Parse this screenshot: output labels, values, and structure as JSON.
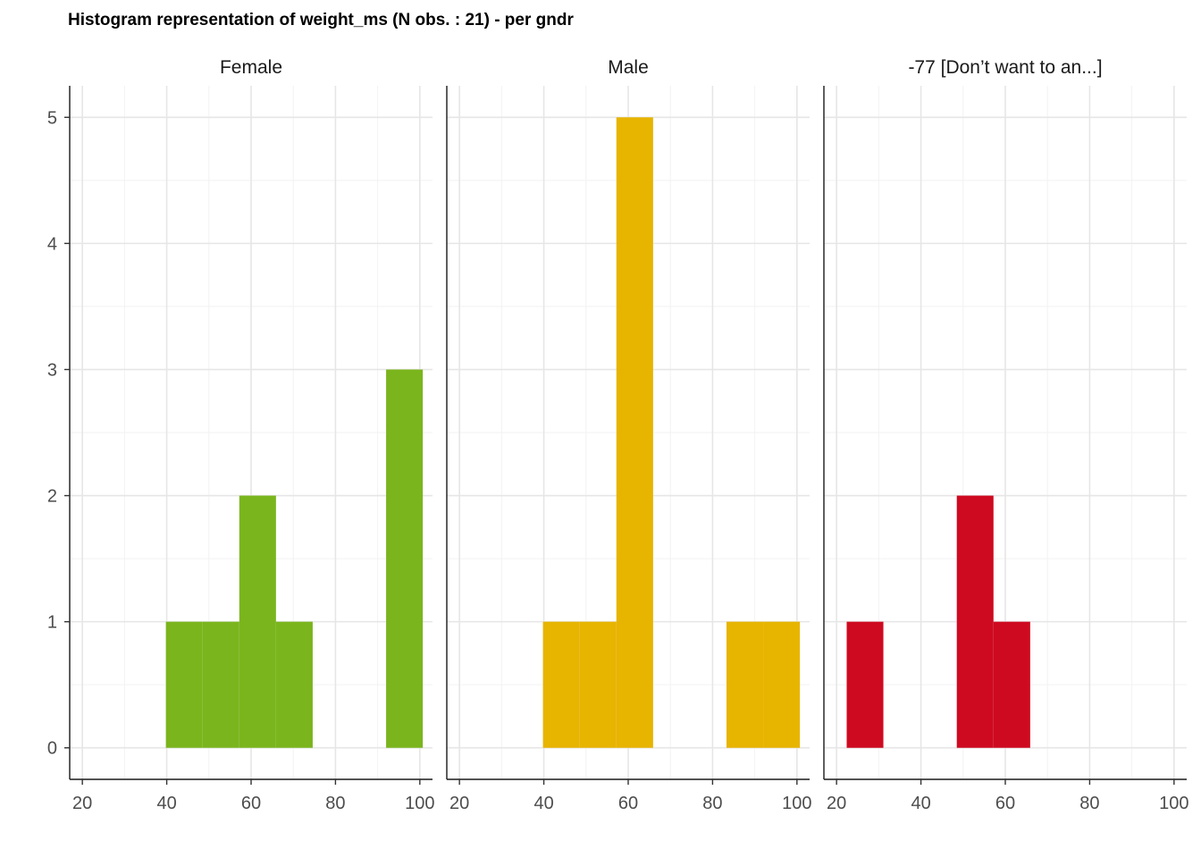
{
  "chart_data": {
    "type": "bar",
    "title": "Histogram representation of weight_ms (N obs. : 21) - per gndr",
    "xlabel": "",
    "ylabel": "",
    "xlim": [
      17,
      103
    ],
    "ylim": [
      -0.25,
      5.25
    ],
    "x_ticks": [
      20,
      40,
      60,
      80,
      100
    ],
    "y_ticks": [
      0,
      1,
      2,
      3,
      4,
      5
    ],
    "grid": true,
    "bin_width": 8.7,
    "facets": [
      {
        "label": "Female",
        "color": "#7AB51D",
        "bins": [
          {
            "x0": 39.8,
            "x1": 48.5,
            "count": 1
          },
          {
            "x0": 48.5,
            "x1": 57.2,
            "count": 1
          },
          {
            "x0": 57.2,
            "x1": 65.9,
            "count": 2
          },
          {
            "x0": 65.9,
            "x1": 74.6,
            "count": 1
          },
          {
            "x0": 92.0,
            "x1": 100.7,
            "count": 3
          }
        ]
      },
      {
        "label": "Male",
        "color": "#E7B400",
        "bins": [
          {
            "x0": 39.8,
            "x1": 48.5,
            "count": 1
          },
          {
            "x0": 48.5,
            "x1": 57.2,
            "count": 1
          },
          {
            "x0": 57.2,
            "x1": 65.9,
            "count": 5
          },
          {
            "x0": 83.3,
            "x1": 92.0,
            "count": 1
          },
          {
            "x0": 92.0,
            "x1": 100.7,
            "count": 1
          }
        ]
      },
      {
        "label": "-77 [Don’t want to an...]",
        "color": "#CE0A20",
        "bins": [
          {
            "x0": 22.4,
            "x1": 31.1,
            "count": 1
          },
          {
            "x0": 48.5,
            "x1": 57.2,
            "count": 2
          },
          {
            "x0": 57.2,
            "x1": 65.9,
            "count": 1
          }
        ]
      }
    ]
  }
}
